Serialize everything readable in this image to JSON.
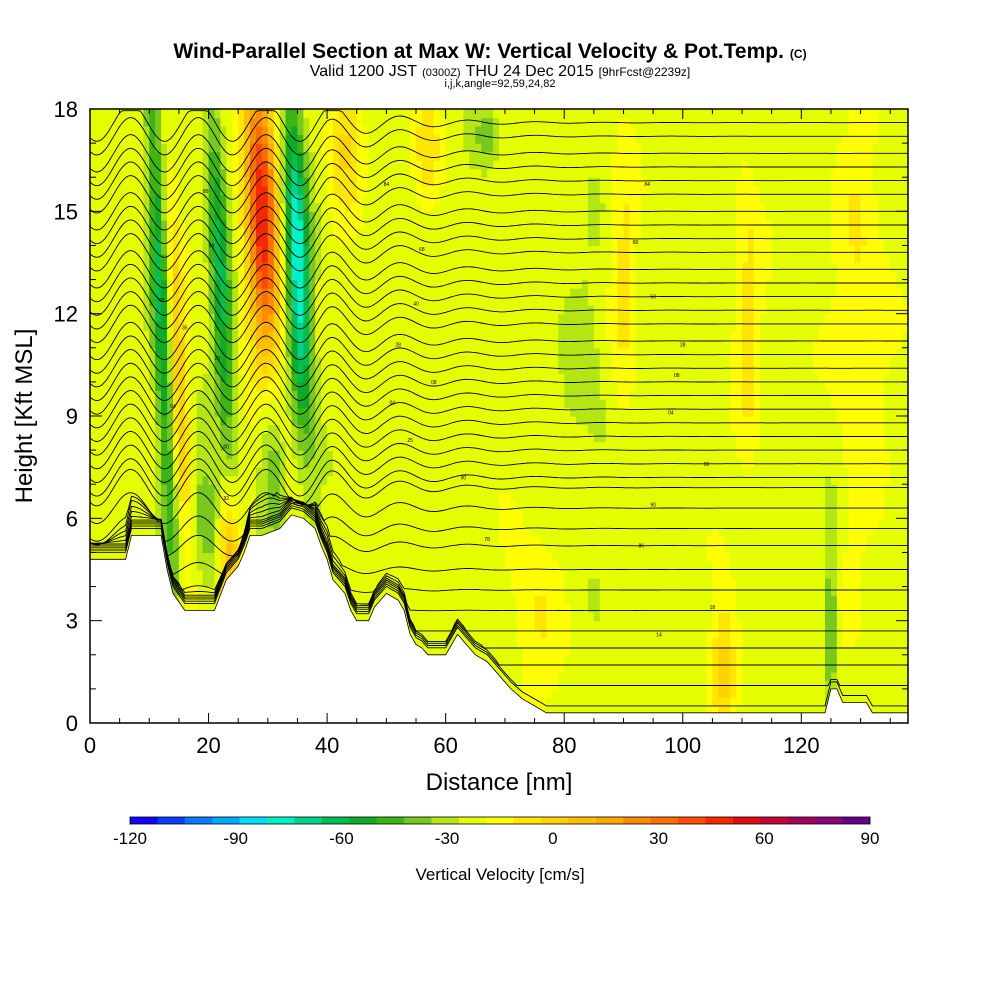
{
  "header": {
    "title": "Wind-Parallel Section at Max W: Vertical Velocity & Pot.Temp.",
    "title_mark": "(C)",
    "valid_prefix": "Valid 1200 JST",
    "valid_zulu": "(0300Z)",
    "valid_date": "THU 24 Dec 2015",
    "forecast": "[9hrFcst@2239z]",
    "indices": "i,j,k,angle=92,59,24,82"
  },
  "chart_data": {
    "type": "heatmap",
    "xlabel": "Distance [nm]",
    "ylabel": "Height [Kft MSL]",
    "xlim": [
      0,
      138
    ],
    "ylim": [
      0,
      18
    ],
    "x_ticks": [
      "0",
      "20",
      "40",
      "60",
      "80",
      "100",
      "120"
    ],
    "y_ticks": [
      "0",
      "3",
      "6",
      "9",
      "12",
      "15",
      "18"
    ],
    "background_value_cm_s": 5,
    "terrain_kft": [
      [
        0,
        4.8
      ],
      [
        6,
        4.8
      ],
      [
        7,
        5.5
      ],
      [
        12,
        5.5
      ],
      [
        13,
        4.5
      ],
      [
        14,
        3.8
      ],
      [
        16,
        3.3
      ],
      [
        21,
        3.3
      ],
      [
        23,
        4.2
      ],
      [
        25,
        4.6
      ],
      [
        26,
        5.0
      ],
      [
        27,
        5.5
      ],
      [
        29,
        5.5
      ],
      [
        32,
        5.7
      ],
      [
        34,
        6.1
      ],
      [
        36,
        6.0
      ],
      [
        38,
        5.7
      ],
      [
        39,
        5.2
      ],
      [
        40,
        4.8
      ],
      [
        41,
        4.2
      ],
      [
        43,
        3.8
      ],
      [
        44,
        3.3
      ],
      [
        45,
        3.0
      ],
      [
        47,
        3.0
      ],
      [
        48,
        3.4
      ],
      [
        50,
        3.8
      ],
      [
        52,
        3.6
      ],
      [
        53,
        3.3
      ],
      [
        54,
        2.6
      ],
      [
        55,
        2.3
      ],
      [
        56,
        2.2
      ],
      [
        57,
        2.0
      ],
      [
        60,
        2.0
      ],
      [
        62,
        2.6
      ],
      [
        64,
        2.2
      ],
      [
        65,
        2.0
      ],
      [
        67,
        1.8
      ],
      [
        69,
        1.4
      ],
      [
        71,
        1.0
      ],
      [
        73,
        0.7
      ],
      [
        75,
        0.5
      ],
      [
        77,
        0.3
      ],
      [
        120,
        0.3
      ],
      [
        124,
        0.3
      ],
      [
        125,
        1.0
      ],
      [
        126,
        1.0
      ],
      [
        127,
        0.6
      ],
      [
        131,
        0.6
      ],
      [
        132,
        0.3
      ],
      [
        138,
        0.3
      ]
    ],
    "vertical_velocity_features": [
      {
        "x": 12,
        "z": 12.0,
        "w": -48,
        "sx": 1.1,
        "sz": 5.5,
        "tilt": -0.25
      },
      {
        "x": 22,
        "z": 13.0,
        "w": -48,
        "sx": 1.2,
        "sz": 4.0,
        "tilt": -0.25
      },
      {
        "x": 35,
        "z": 13.5,
        "w": -75,
        "sx": 1.5,
        "sz": 3.5,
        "tilt": -0.25
      },
      {
        "x": 29,
        "z": 15.0,
        "w": 90,
        "sx": 2.0,
        "sz": 3.5,
        "tilt": -0.22
      },
      {
        "x": 15,
        "z": 10.0,
        "w": 38,
        "sx": 1.0,
        "sz": 4.0,
        "tilt": -0.25
      },
      {
        "x": 23.5,
        "z": 5.0,
        "w": 45,
        "sx": 1.3,
        "sz": 1.4,
        "tilt": -0.2
      },
      {
        "x": 20,
        "z": 6.0,
        "w": -30,
        "sx": 1.8,
        "sz": 1.2,
        "tilt": -0.3
      },
      {
        "x": 31,
        "z": 7.5,
        "w": -30,
        "sx": 1.5,
        "sz": 2.0,
        "tilt": -0.3
      },
      {
        "x": 43,
        "z": 17.0,
        "w": 25,
        "sx": 2.0,
        "sz": 1.5,
        "tilt": 0
      },
      {
        "x": 57,
        "z": 17.0,
        "w": 20,
        "sx": 1.5,
        "sz": 1.2,
        "tilt": 0
      },
      {
        "x": 67,
        "z": 17.2,
        "w": -22,
        "sx": 1.5,
        "sz": 0.6,
        "tilt": 0
      },
      {
        "x": 107,
        "z": 1.5,
        "w": 35,
        "sx": 1.5,
        "sz": 1.5,
        "tilt": 0
      },
      {
        "x": 125,
        "z": 3.0,
        "w": -30,
        "sx": 0.6,
        "sz": 2.0,
        "tilt": 0
      },
      {
        "x": 90,
        "z": 13.0,
        "w": 18,
        "sx": 1.5,
        "sz": 3.0,
        "tilt": 0
      },
      {
        "x": 111,
        "z": 12.0,
        "w": 20,
        "sx": 1.5,
        "sz": 3.0,
        "tilt": 0
      },
      {
        "x": 75,
        "z": 3.0,
        "w": 15,
        "sx": 3.0,
        "sz": 2.0,
        "tilt": 0
      },
      {
        "x": 130,
        "z": 12.0,
        "w": 15,
        "sx": 3.0,
        "sz": 5.0,
        "tilt": 0
      },
      {
        "x": 84,
        "z": 10.0,
        "w": -8,
        "sx": 3.0,
        "sz": 3.0,
        "tilt": 0
      }
    ],
    "theta_contours": {
      "kft_levels": [
        0.5,
        1.1,
        1.7,
        2.2,
        2.7,
        3.3,
        3.9,
        4.5,
        5.2,
        5.7,
        6.3,
        6.9,
        7.2,
        7.6,
        8.0,
        8.4,
        8.8,
        9.2,
        9.6,
        10.0,
        10.4,
        10.8,
        11.2,
        11.7,
        12.1,
        12.5,
        12.9,
        13.3,
        13.8,
        14.2,
        14.6,
        15.0,
        15.5,
        15.9,
        16.3,
        16.7,
        17.2,
        17.6
      ],
      "labels": [
        {
          "x": 19.5,
          "z": 15.6,
          "text": "80"
        },
        {
          "x": 50,
          "z": 15.8,
          "text": "84"
        },
        {
          "x": 94,
          "z": 15.8,
          "text": "84"
        },
        {
          "x": 20.5,
          "z": 14.0,
          "text": "56"
        },
        {
          "x": 56,
          "z": 13.9,
          "text": "68"
        },
        {
          "x": 92,
          "z": 14.1,
          "text": "68"
        },
        {
          "x": 12,
          "z": 12.4,
          "text": "43"
        },
        {
          "x": 55,
          "z": 12.3,
          "text": "40"
        },
        {
          "x": 95,
          "z": 12.5,
          "text": "50"
        },
        {
          "x": 16,
          "z": 11.6,
          "text": "35"
        },
        {
          "x": 52,
          "z": 11.1,
          "text": "28"
        },
        {
          "x": 100,
          "z": 11.1,
          "text": "28"
        },
        {
          "x": 21.5,
          "z": 10.7,
          "text": "20"
        },
        {
          "x": 58,
          "z": 10.0,
          "text": "08"
        },
        {
          "x": 99,
          "z": 10.2,
          "text": "08"
        },
        {
          "x": 14,
          "z": 9.3,
          "text": "04"
        },
        {
          "x": 51,
          "z": 9.4,
          "text": "04"
        },
        {
          "x": 98,
          "z": 9.1,
          "text": "04"
        },
        {
          "x": 23,
          "z": 8.1,
          "text": "00"
        },
        {
          "x": 54,
          "z": 8.3,
          "text": "25"
        },
        {
          "x": 104,
          "z": 7.6,
          "text": "96"
        },
        {
          "x": 63,
          "z": 7.2,
          "text": "90"
        },
        {
          "x": 23,
          "z": 6.6,
          "text": "92"
        },
        {
          "x": 95,
          "z": 6.4,
          "text": "90"
        },
        {
          "x": 67,
          "z": 5.4,
          "text": "78"
        },
        {
          "x": 93,
          "z": 5.2,
          "text": "86"
        },
        {
          "x": 105,
          "z": 3.4,
          "text": "18"
        },
        {
          "x": 96,
          "z": 2.6,
          "text": "14"
        }
      ]
    },
    "colorbar": {
      "label": "Vertical Velocity [cm/s]",
      "range": [
        -120,
        90
      ],
      "step": 10,
      "tick_labels": [
        "-120",
        "-90",
        "-60",
        "-30",
        "0",
        "30",
        "60",
        "90"
      ],
      "colors": [
        "#1400ff",
        "#0a3cff",
        "#0a78ff",
        "#00aaff",
        "#00dcff",
        "#00f0c8",
        "#00d28c",
        "#00be50",
        "#0faa28",
        "#3cb414",
        "#78c81e",
        "#b4e614",
        "#e6ff00",
        "#ffff00",
        "#ffe600",
        "#ffd200",
        "#ffbe00",
        "#ffaa00",
        "#ff8c00",
        "#ff6e00",
        "#ff4b00",
        "#f52800",
        "#e10a14",
        "#c8003c",
        "#a5005a",
        "#8c0078",
        "#64008c"
      ]
    }
  }
}
